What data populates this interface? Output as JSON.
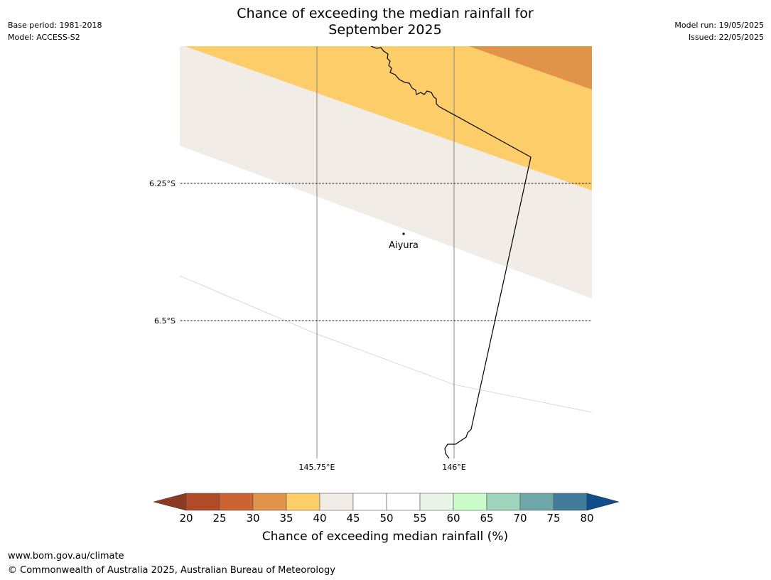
{
  "title_line1": "Chance of exceeding the median rainfall for",
  "title_line2": "September 2025",
  "meta_left": {
    "base_period": "Base period: 1981-2018",
    "model": "Model: ACCESS-S2"
  },
  "meta_right": {
    "model_run": "Model run: 19/05/2025",
    "issued": "Issued: 22/05/2025"
  },
  "map": {
    "lat_labels": [
      "6.25°S",
      "6.5°S"
    ],
    "lon_labels": [
      "145.75°E",
      "146°E"
    ],
    "place": "Aiyura"
  },
  "colorbar": {
    "ticks": [
      "20",
      "25",
      "30",
      "35",
      "40",
      "45",
      "50",
      "55",
      "60",
      "65",
      "70",
      "75",
      "80"
    ],
    "low_extend_color": "#8c3a22",
    "high_extend_color": "#104e8b",
    "colors": [
      "#b04a27",
      "#cc6432",
      "#e0944a",
      "#fdcd6a",
      "#f1ece6",
      "#ffffff",
      "#ffffff",
      "#e8f5e6",
      "#c8fcc8",
      "#9ed3bc",
      "#6fa7a8",
      "#407b9c"
    ],
    "label": "Chance of exceeding median rainfall (%)"
  },
  "footer": {
    "url": "www.bom.gov.au/climate",
    "copyright": "© Commonwealth of Australia 2025, Australian Bureau of Meteorology"
  }
}
